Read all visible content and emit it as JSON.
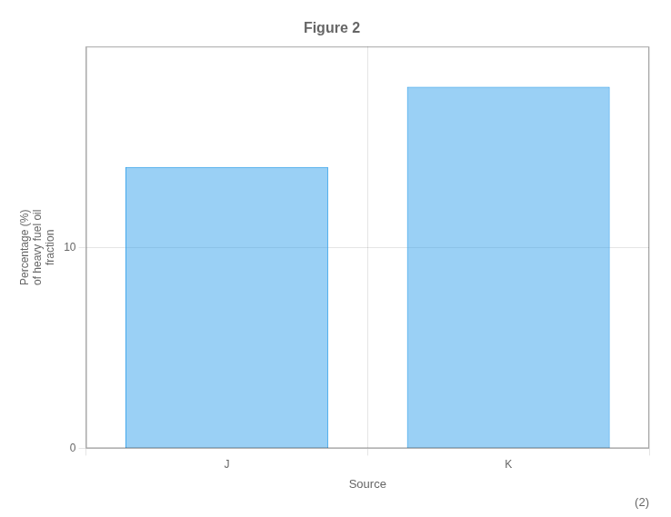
{
  "chart_data": {
    "type": "bar",
    "title": "Figure 2",
    "ylabel": [
      "Percentage (%)",
      "of heavy fuel oil",
      "fraction"
    ],
    "xlabel": "Source",
    "categories": [
      "J",
      "K"
    ],
    "values": [
      14,
      18
    ],
    "ylim": [
      0,
      20
    ],
    "yticks": [
      0,
      10
    ],
    "grid": true,
    "annotation": "(2)"
  }
}
